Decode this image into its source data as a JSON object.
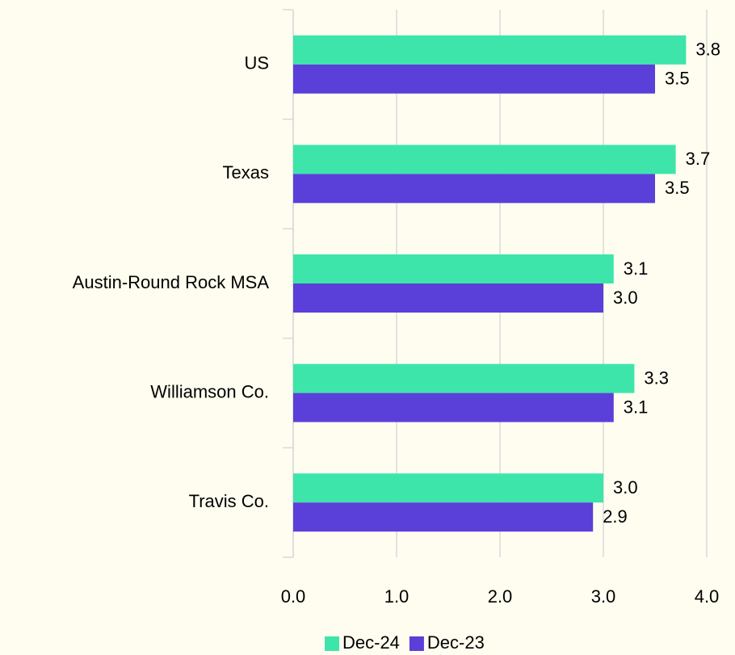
{
  "chart_data": {
    "type": "hbar",
    "categories": [
      "US",
      "Texas",
      "Austin-Round Rock MSA",
      "Williamson Co.",
      "Travis Co."
    ],
    "series": [
      {
        "name": "Dec-24",
        "color": "#3ee5aa",
        "values": [
          3.8,
          3.7,
          3.1,
          3.3,
          3.0
        ],
        "value_labels": [
          "3.8",
          "3.7",
          "3.1",
          "3.3",
          "3.0"
        ]
      },
      {
        "name": "Dec-23",
        "color": "#5b3fd9",
        "values": [
          3.5,
          3.5,
          3.0,
          3.1,
          2.9
        ],
        "value_labels": [
          "3.5",
          "3.5",
          "3.0",
          "3.1",
          "2.9"
        ]
      }
    ],
    "xlim": [
      0,
      4
    ],
    "xticks": [
      {
        "value": 0,
        "label": "0.0"
      },
      {
        "value": 1,
        "label": "1.0"
      },
      {
        "value": 2,
        "label": "2.0"
      },
      {
        "value": 3,
        "label": "3.0"
      },
      {
        "value": 4,
        "label": "4.0"
      }
    ],
    "grid": true,
    "legend": "bottom"
  }
}
